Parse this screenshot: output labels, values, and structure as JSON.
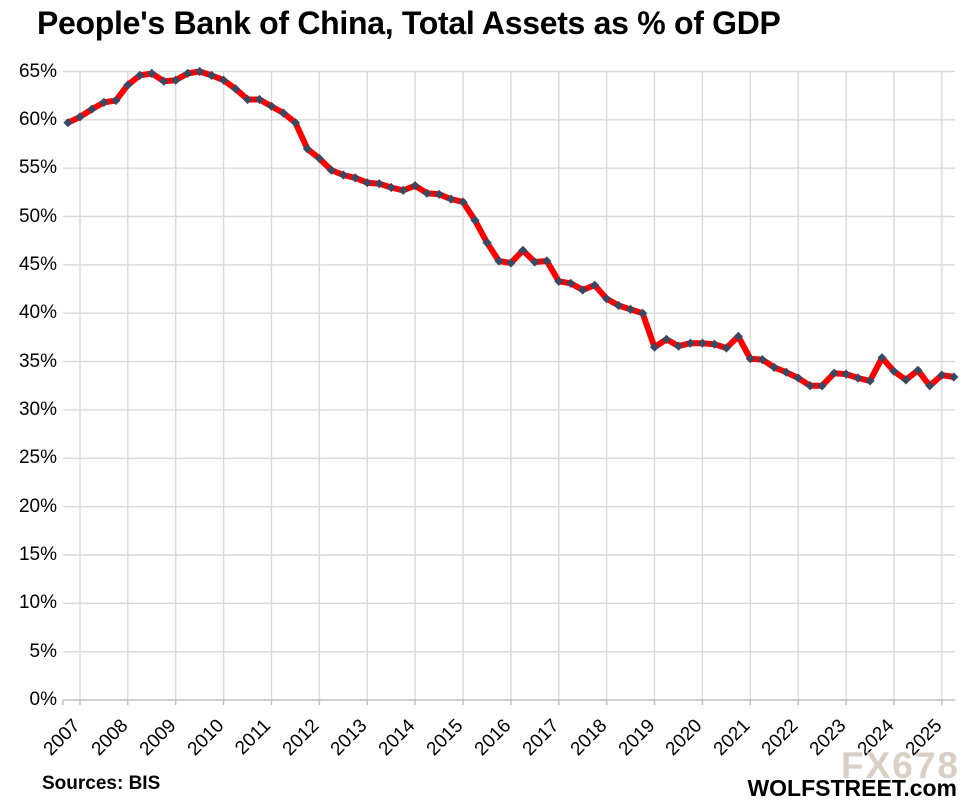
{
  "title": "People's Bank of China, Total Assets as % of GDP",
  "footer": {
    "source": "Sources: BIS",
    "brand": "WOLFSTREET.com",
    "watermark": "FX678"
  },
  "colors": {
    "line": "#ff0000",
    "marker": "#3a4962",
    "gridline": "#d9d9d9",
    "axis_line": "#bfbfbf",
    "text": "#000000",
    "watermark": "#d9cfc5"
  },
  "chart_data": {
    "type": "line",
    "title": "People's Bank of China, Total Assets as % of GDP",
    "grid": true,
    "legend": false,
    "marker": "diamond",
    "ylim": [
      0,
      65
    ],
    "y_tick_step": 5,
    "y_tick_labels": [
      "0%",
      "5%",
      "10%",
      "15%",
      "20%",
      "25%",
      "30%",
      "35%",
      "40%",
      "45%",
      "50%",
      "55%",
      "60%",
      "65%"
    ],
    "x_tick_labels": [
      "2007",
      "2008",
      "2009",
      "2010",
      "2011",
      "2012",
      "2013",
      "2014",
      "2015",
      "2016",
      "2017",
      "2018",
      "2019",
      "2020",
      "2021",
      "2022",
      "2023",
      "2024",
      "2025"
    ],
    "x": [
      "2006-Q4",
      "2007-Q1",
      "2007-Q2",
      "2007-Q3",
      "2007-Q4",
      "2008-Q1",
      "2008-Q2",
      "2008-Q3",
      "2008-Q4",
      "2009-Q1",
      "2009-Q2",
      "2009-Q3",
      "2009-Q4",
      "2010-Q1",
      "2010-Q2",
      "2010-Q3",
      "2010-Q4",
      "2011-Q1",
      "2011-Q2",
      "2011-Q3",
      "2011-Q4",
      "2012-Q1",
      "2012-Q2",
      "2012-Q3",
      "2012-Q4",
      "2013-Q1",
      "2013-Q2",
      "2013-Q3",
      "2013-Q4",
      "2014-Q1",
      "2014-Q2",
      "2014-Q3",
      "2014-Q4",
      "2015-Q1",
      "2015-Q2",
      "2015-Q3",
      "2015-Q4",
      "2016-Q1",
      "2016-Q2",
      "2016-Q3",
      "2016-Q4",
      "2017-Q1",
      "2017-Q2",
      "2017-Q3",
      "2017-Q4",
      "2018-Q1",
      "2018-Q2",
      "2018-Q3",
      "2018-Q4",
      "2019-Q1",
      "2019-Q2",
      "2019-Q3",
      "2019-Q4",
      "2020-Q1",
      "2020-Q2",
      "2020-Q3",
      "2020-Q4",
      "2021-Q1",
      "2021-Q2",
      "2021-Q3",
      "2021-Q4",
      "2022-Q1",
      "2022-Q2",
      "2022-Q3",
      "2022-Q4",
      "2023-Q1",
      "2023-Q2",
      "2023-Q3",
      "2023-Q4",
      "2024-Q1",
      "2024-Q2",
      "2024-Q3",
      "2024-Q4",
      "2025-Q1",
      "2025-Q2"
    ],
    "values": [
      59.7,
      60.3,
      61.1,
      61.8,
      62.0,
      63.6,
      64.6,
      64.8,
      64.0,
      64.1,
      64.8,
      65.0,
      64.6,
      64.1,
      63.2,
      62.1,
      62.1,
      61.4,
      60.7,
      59.7,
      57.0,
      56.0,
      54.8,
      54.3,
      54.0,
      53.5,
      53.4,
      53.0,
      52.7,
      53.2,
      52.4,
      52.3,
      51.8,
      51.5,
      49.6,
      47.3,
      45.4,
      45.2,
      46.5,
      45.3,
      45.4,
      43.3,
      43.1,
      42.4,
      42.9,
      41.5,
      40.8,
      40.4,
      40.0,
      36.5,
      37.3,
      36.6,
      36.9,
      36.9,
      36.8,
      36.4,
      37.6,
      35.3,
      35.2,
      34.4,
      33.9,
      33.3,
      32.5,
      32.5,
      33.8,
      33.7,
      33.3,
      33.0,
      35.4,
      34.0,
      33.1,
      34.1,
      32.5,
      33.6,
      33.4
    ]
  }
}
